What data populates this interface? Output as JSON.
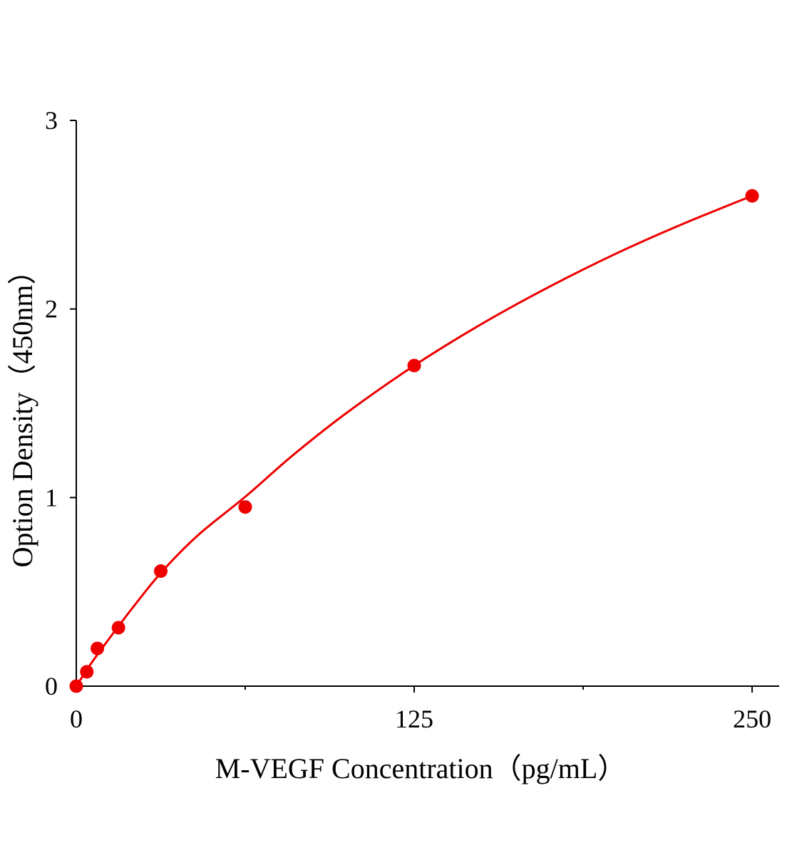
{
  "chart_data": {
    "type": "scatter",
    "x_label": "M-VEGF Concentration（pg/mL）",
    "y_label": "Option Density（450nm）",
    "color": "#ee0000",
    "points": {
      "x": [
        0,
        3.9,
        7.8,
        15.6,
        31.25,
        62.5,
        125,
        250
      ],
      "y": [
        0,
        0.076,
        0.2,
        0.31,
        0.61,
        0.95,
        1.7,
        2.6
      ]
    },
    "fit": {
      "x": [
        0,
        5,
        10,
        20,
        31.25,
        45,
        62.5,
        80,
        100,
        125,
        150,
        175,
        200,
        225,
        250
      ],
      "y": [
        0,
        0.11,
        0.21,
        0.4,
        0.6,
        0.8,
        1.004,
        1.223,
        1.449,
        1.7,
        1.921,
        2.118,
        2.296,
        2.455,
        2.6
      ]
    },
    "xlim": [
      0,
      260
    ],
    "ylim": [
      0,
      3
    ],
    "xticks": [
      0,
      125,
      250
    ],
    "xminorticks": [
      62.5,
      187.5
    ],
    "yticks": [
      0,
      1,
      2,
      3
    ],
    "grid": false
  }
}
